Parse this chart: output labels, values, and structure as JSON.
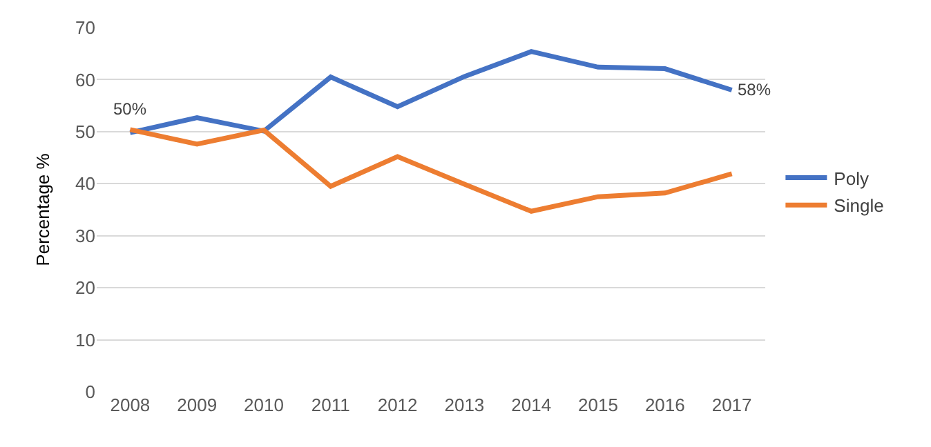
{
  "chart_data": {
    "type": "line",
    "ylabel": "Percentage %",
    "categories": [
      "2008",
      "2009",
      "2010",
      "2011",
      "2012",
      "2013",
      "2014",
      "2015",
      "2016",
      "2017"
    ],
    "series": [
      {
        "name": "Poly",
        "color": "#4472c4",
        "values": [
          49.8,
          52.7,
          50.1,
          60.5,
          54.8,
          60.6,
          65.4,
          62.4,
          62.1,
          58
        ],
        "value_labels": [
          null,
          null,
          null,
          null,
          null,
          null,
          null,
          null,
          null,
          "58%"
        ]
      },
      {
        "name": "Single",
        "color": "#ed7d31",
        "values": [
          50.4,
          47.6,
          50.3,
          39.5,
          45.2,
          39.9,
          34.7,
          37.5,
          38.2,
          41.9
        ],
        "value_labels": [
          "50%",
          null,
          null,
          null,
          null,
          null,
          null,
          null,
          null,
          null
        ]
      }
    ],
    "ylim": [
      0,
      70
    ],
    "yticks": [
      0,
      10,
      20,
      30,
      40,
      50,
      60,
      70
    ],
    "grid": "y",
    "legend": "right",
    "marker": "none",
    "line_style": "solid"
  }
}
